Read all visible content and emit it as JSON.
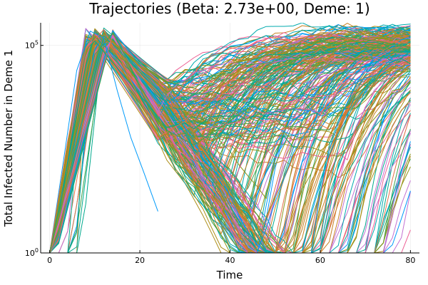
{
  "chart_data": {
    "type": "line",
    "title": "Trajectories (Beta: 2.73e+00, Deme: 1)",
    "xlabel": "Time",
    "ylabel": "Total Infected Number in Deme 1",
    "xlim": [
      -2,
      82
    ],
    "xticks": [
      0,
      20,
      40,
      60,
      80
    ],
    "y_scale": "log10",
    "ylim": [
      1,
      350000
    ],
    "yticks": [
      {
        "value": 1,
        "base": "10",
        "exp": "0"
      },
      {
        "value": 100000,
        "base": "10",
        "exp": "5"
      }
    ],
    "grid": true,
    "legend": "none",
    "series_count": 300,
    "palette": [
      "#009AFA",
      "#E36F47",
      "#3EA44E",
      "#C371D2",
      "#AC8E18",
      "#00AAAE",
      "#ED5E93",
      "#C68225",
      "#00A98D",
      "#8E971E"
    ],
    "representative_series": [
      {
        "x": [
          0,
          3,
          6,
          9,
          12,
          15,
          18,
          21,
          24
        ],
        "y": [
          1,
          150,
          25000,
          220000,
          150000,
          8000,
          600,
          80,
          10
        ]
      },
      {
        "x": [
          0,
          4,
          8,
          12,
          16,
          20,
          24,
          30,
          40,
          50,
          60,
          70,
          80
        ],
        "y": [
          1,
          500,
          80000,
          240000,
          40000,
          5000,
          600,
          1500,
          20000,
          120000,
          180000,
          140000,
          110000
        ]
      },
      {
        "x": [
          0,
          5,
          10,
          14,
          18,
          22,
          26,
          32,
          44,
          56,
          66,
          74,
          80
        ],
        "y": [
          1,
          300,
          60000,
          200000,
          30000,
          3000,
          900,
          400,
          3000,
          60000,
          160000,
          120000,
          90000
        ]
      }
    ]
  }
}
